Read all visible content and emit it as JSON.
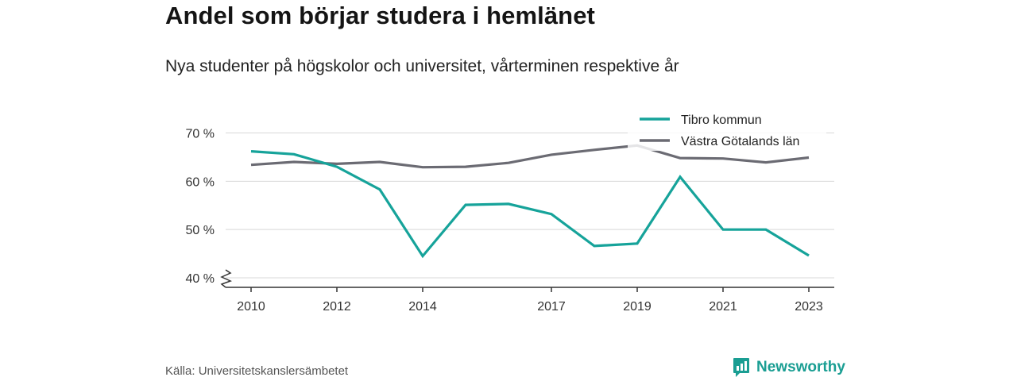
{
  "header": {
    "title": "Andel som börjar studera i hemlänet",
    "subtitle": "Nya studenter på högskolor och universitet, vårterminen respektive år"
  },
  "footer": {
    "source": "Källa: Universitetskanslersämbetet",
    "brand": "Newsworthy"
  },
  "colors": {
    "tibro": "#16a39a",
    "vastra": "#6b6b73",
    "brand": "#1a9e93",
    "grid": "#d8d8d8",
    "axis": "#333333"
  },
  "icons": {
    "brand": "newsworthy-logo-icon",
    "axis_break": "axis-break-icon"
  },
  "chart_data": {
    "type": "line",
    "title": "Andel som börjar studera i hemlänet",
    "subtitle": "Nya studenter på högskolor och universitet, vårterminen respektive år",
    "x": [
      2010,
      2011,
      2012,
      2013,
      2014,
      2015,
      2016,
      2017,
      2018,
      2019,
      2020,
      2021,
      2022,
      2023
    ],
    "x_ticks": [
      "2010",
      "2012",
      "2014",
      "2017",
      "2019",
      "2021",
      "2023"
    ],
    "x_range": [
      2010,
      2023
    ],
    "y_ticks": [
      "40 %",
      "50 %",
      "60 %",
      "70 %"
    ],
    "y_tick_values": [
      40,
      50,
      60,
      70
    ],
    "ylim": [
      38,
      70
    ],
    "y_axis_break": true,
    "grid": "horizontal",
    "legend_position": "top-right",
    "series": [
      {
        "name": "Tibro kommun",
        "color": "#16a39a",
        "values": [
          66.2,
          65.6,
          63.0,
          58.3,
          44.5,
          55.1,
          55.3,
          53.2,
          46.6,
          47.1,
          60.9,
          50.0,
          50.0,
          44.6
        ]
      },
      {
        "name": "Västra Götalands län",
        "color": "#6b6b73",
        "values": [
          63.4,
          64.0,
          63.6,
          64.0,
          62.9,
          63.0,
          63.8,
          65.5,
          66.5,
          67.4,
          64.8,
          64.7,
          63.9,
          64.9
        ]
      }
    ]
  }
}
